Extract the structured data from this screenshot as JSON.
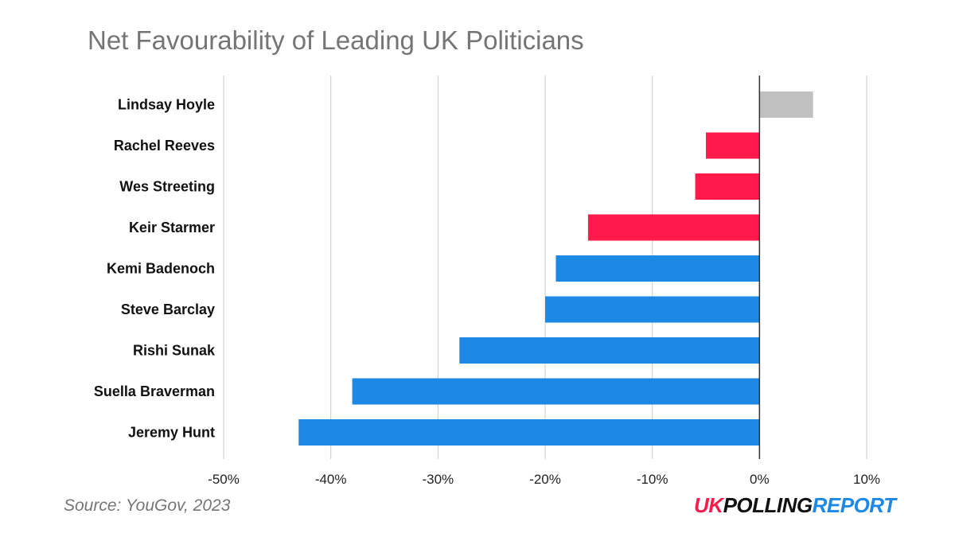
{
  "chart_data": {
    "type": "bar",
    "orientation": "horizontal",
    "title": "Net Favourability of Leading UK Politicians",
    "categories": [
      "Lindsay Hoyle",
      "Rachel Reeves",
      "Wes Streeting",
      "Keir Starmer",
      "Kemi Badenoch",
      "Steve Barclay",
      "Rishi Sunak",
      "Suella Braverman",
      "Jeremy Hunt"
    ],
    "values": [
      5,
      -5,
      -6,
      -16,
      -19,
      -20,
      -28,
      -38,
      -43
    ],
    "bar_colors": [
      "#c0c0c0",
      "#ff1a4b",
      "#ff1a4b",
      "#ff1a4b",
      "#1e88e5",
      "#1e88e5",
      "#1e88e5",
      "#1e88e5",
      "#1e88e5"
    ],
    "xlim": [
      -50,
      10
    ],
    "xticks": [
      -50,
      -40,
      -30,
      -20,
      -10,
      0,
      10
    ],
    "xtick_labels": [
      "-50%",
      "-40%",
      "-30%",
      "-20%",
      "-10%",
      "0%",
      "10%"
    ],
    "grid": true
  },
  "footer": {
    "source": "Source: YouGov, 2023",
    "logo": {
      "uk": "UK",
      "polling": "POLLING",
      "report": "REPORT"
    }
  }
}
